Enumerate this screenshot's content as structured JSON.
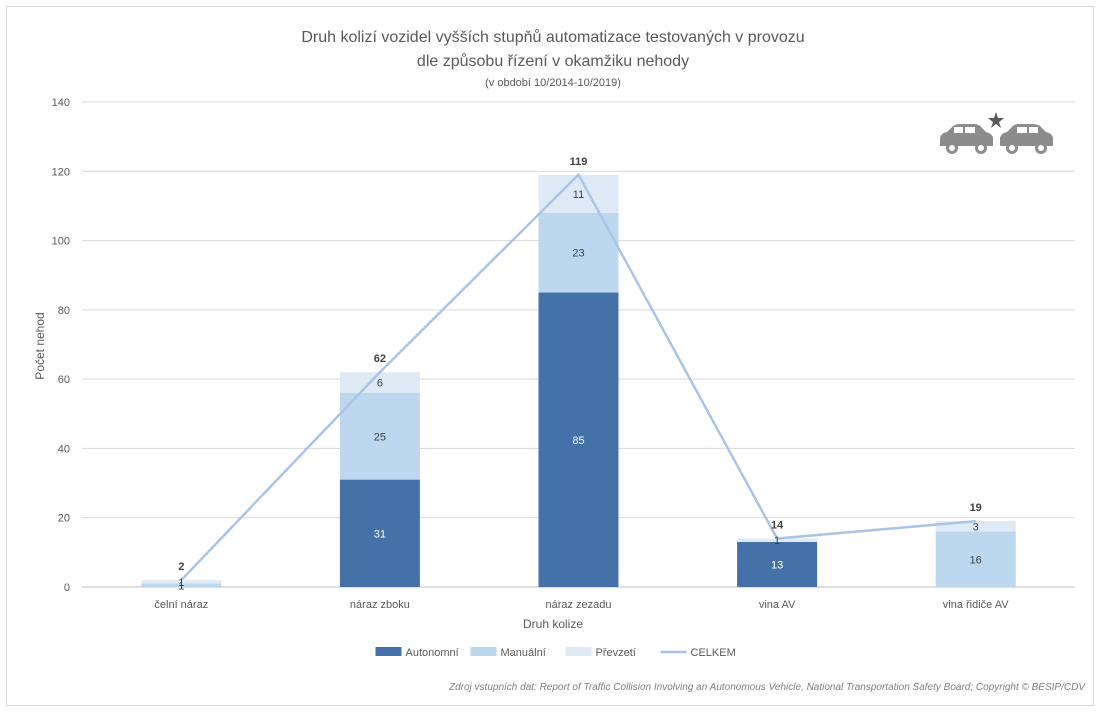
{
  "chart_data": {
    "type": "bar",
    "stacked": true,
    "title_line1": "Druh kolizí vozidel vyšších stupňů automatizace testovaných v provozu",
    "title_line2": "dle způsobu řízení v okamžiku nehody",
    "subtitle": "(v období 10/2014-10/2019)",
    "xlabel": "Druh kolize",
    "ylabel": "Počet nehod",
    "ylim": [
      0,
      140
    ],
    "yticks": [
      0,
      20,
      40,
      60,
      80,
      100,
      120,
      140
    ],
    "grid": true,
    "legend_position": "bottom",
    "categories": [
      "čelní náraz",
      "náraz zboku",
      "náraz zezadu",
      "vina AV",
      "vina řidiče AV"
    ],
    "series": [
      {
        "name": "Autonomní",
        "type": "bar",
        "color": "#4472a8",
        "label_color": "#ffffff",
        "values": [
          0,
          31,
          85,
          13,
          0
        ]
      },
      {
        "name": "Manuální",
        "type": "bar",
        "color": "#bdd7ee",
        "label_color": "#404040",
        "values": [
          1,
          25,
          23,
          0,
          16
        ]
      },
      {
        "name": "Převzetí",
        "type": "bar",
        "color": "#deebf7",
        "label_color": "#404040",
        "values": [
          1,
          6,
          11,
          1,
          3
        ]
      },
      {
        "name": "CELKEM",
        "type": "line",
        "color": "#a9c4e4",
        "values": [
          2,
          62,
          119,
          14,
          19
        ]
      }
    ],
    "source_note": "Zdroj vstupních dat: Report of Traffic Collision Involving an Autonomous Vehicle, National Transportation Safety Board; Copyright © BESIP/CDV"
  },
  "icons": {
    "collision": "car-collision-icon"
  }
}
